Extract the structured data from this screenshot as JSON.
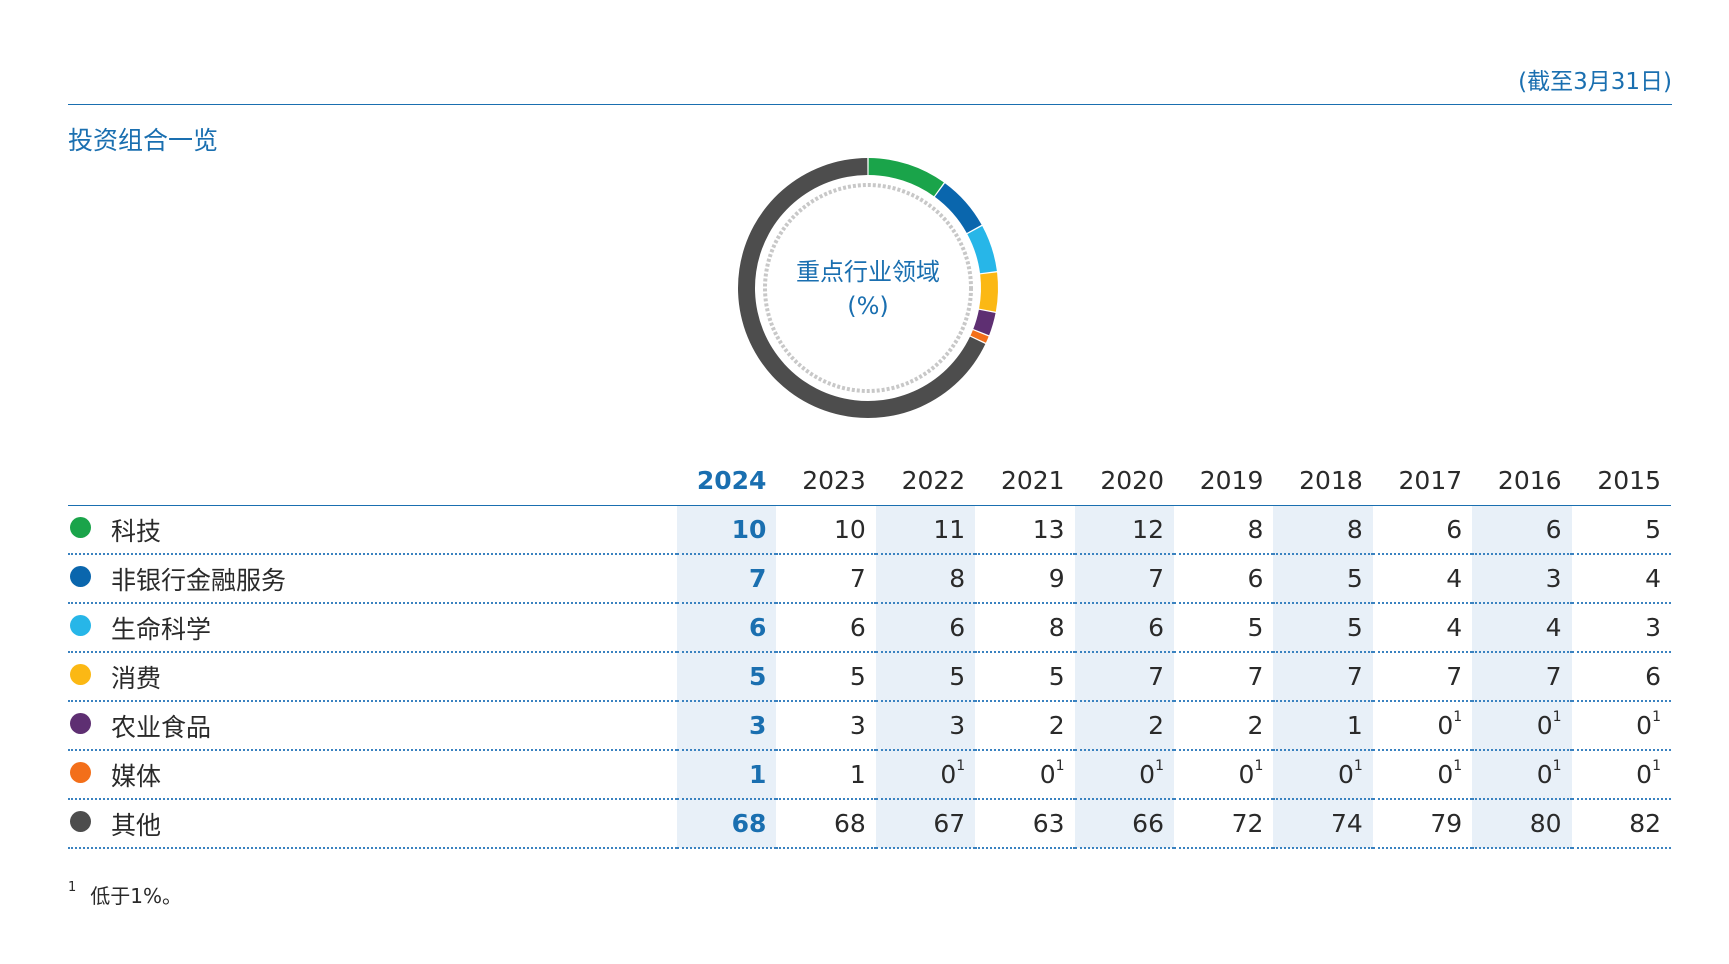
{
  "header": {
    "as_of": "(截至3月31日)",
    "section_title": "投资组合一览"
  },
  "colors": {
    "accent": "#1a6fb0",
    "highlight_column_bg": "#e8f0f8"
  },
  "chart_data": {
    "type": "pie",
    "variant": "donut",
    "center_label_line1": "重点行业领域",
    "center_label_line2": "(%)",
    "year": "2024",
    "slices": [
      {
        "name": "科技",
        "value": 10,
        "color": "#1aa44a"
      },
      {
        "name": "非银行金融服务",
        "value": 7,
        "color": "#0a66ad"
      },
      {
        "name": "生命科学",
        "value": 6,
        "color": "#27b6e8"
      },
      {
        "name": "消费",
        "value": 5,
        "color": "#fbb814"
      },
      {
        "name": "农业食品",
        "value": 3,
        "color": "#5e2f72"
      },
      {
        "name": "媒体",
        "value": 1,
        "color": "#f36f1a"
      },
      {
        "name": "其他",
        "value": 68,
        "color": "#4d4d4d"
      }
    ]
  },
  "table": {
    "years": [
      "2024",
      "2023",
      "2022",
      "2021",
      "2020",
      "2019",
      "2018",
      "2017",
      "2016",
      "2015"
    ],
    "rows": [
      {
        "label": "科技",
        "color": "#1aa44a",
        "values": [
          [
            "10",
            ""
          ],
          [
            "10",
            ""
          ],
          [
            "11",
            ""
          ],
          [
            "13",
            ""
          ],
          [
            "12",
            ""
          ],
          [
            "8",
            ""
          ],
          [
            "8",
            ""
          ],
          [
            "6",
            ""
          ],
          [
            "6",
            ""
          ],
          [
            "5",
            ""
          ]
        ]
      },
      {
        "label": "非银行金融服务",
        "color": "#0a66ad",
        "values": [
          [
            "7",
            ""
          ],
          [
            "7",
            ""
          ],
          [
            "8",
            ""
          ],
          [
            "9",
            ""
          ],
          [
            "7",
            ""
          ],
          [
            "6",
            ""
          ],
          [
            "5",
            ""
          ],
          [
            "4",
            ""
          ],
          [
            "3",
            ""
          ],
          [
            "4",
            ""
          ]
        ]
      },
      {
        "label": "生命科学",
        "color": "#27b6e8",
        "values": [
          [
            "6",
            ""
          ],
          [
            "6",
            ""
          ],
          [
            "6",
            ""
          ],
          [
            "8",
            ""
          ],
          [
            "6",
            ""
          ],
          [
            "5",
            ""
          ],
          [
            "5",
            ""
          ],
          [
            "4",
            ""
          ],
          [
            "4",
            ""
          ],
          [
            "3",
            ""
          ]
        ]
      },
      {
        "label": "消费",
        "color": "#fbb814",
        "values": [
          [
            "5",
            ""
          ],
          [
            "5",
            ""
          ],
          [
            "5",
            ""
          ],
          [
            "5",
            ""
          ],
          [
            "7",
            ""
          ],
          [
            "7",
            ""
          ],
          [
            "7",
            ""
          ],
          [
            "7",
            ""
          ],
          [
            "7",
            ""
          ],
          [
            "6",
            ""
          ]
        ]
      },
      {
        "label": "农业食品",
        "color": "#5e2f72",
        "values": [
          [
            "3",
            ""
          ],
          [
            "3",
            ""
          ],
          [
            "3",
            ""
          ],
          [
            "2",
            ""
          ],
          [
            "2",
            ""
          ],
          [
            "2",
            ""
          ],
          [
            "1",
            ""
          ],
          [
            "0",
            "1"
          ],
          [
            "0",
            "1"
          ],
          [
            "0",
            "1"
          ]
        ]
      },
      {
        "label": "媒体",
        "color": "#f36f1a",
        "values": [
          [
            "1",
            ""
          ],
          [
            "1",
            ""
          ],
          [
            "0",
            "1"
          ],
          [
            "0",
            "1"
          ],
          [
            "0",
            "1"
          ],
          [
            "0",
            "1"
          ],
          [
            "0",
            "1"
          ],
          [
            "0",
            "1"
          ],
          [
            "0",
            "1"
          ],
          [
            "0",
            "1"
          ]
        ]
      },
      {
        "label": "其他",
        "color": "#4d4d4d",
        "values": [
          [
            "68",
            ""
          ],
          [
            "68",
            ""
          ],
          [
            "67",
            ""
          ],
          [
            "63",
            ""
          ],
          [
            "66",
            ""
          ],
          [
            "72",
            ""
          ],
          [
            "74",
            ""
          ],
          [
            "79",
            ""
          ],
          [
            "80",
            ""
          ],
          [
            "82",
            ""
          ]
        ]
      }
    ]
  },
  "footnote": {
    "mark": "1",
    "text": "低于1%。"
  }
}
